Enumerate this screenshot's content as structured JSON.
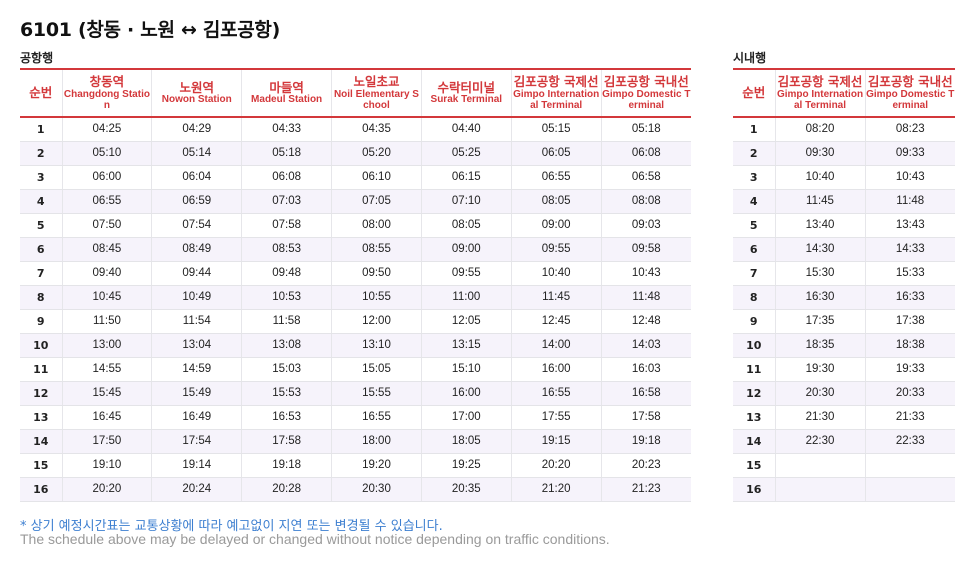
{
  "title": "6101 (창동 · 노원 ↔ 김포공항)",
  "airbound": {
    "label": "공항행",
    "num_header": "순번",
    "columns": [
      {
        "kr": "창동역",
        "en": "Changdong Station"
      },
      {
        "kr": "노원역",
        "en": "Nowon Station"
      },
      {
        "kr": "마들역",
        "en": "Madeul Station"
      },
      {
        "kr": "노일초교",
        "en": "Noil Elementary School"
      },
      {
        "kr": "수락터미널",
        "en": "Surak Terminal"
      },
      {
        "kr": "김포공항 국제선",
        "en": "Gimpo International Terminal"
      },
      {
        "kr": "김포공항 국내선",
        "en": "Gimpo Domestic Terminal"
      }
    ],
    "rows": [
      [
        "1",
        "04:25",
        "04:29",
        "04:33",
        "04:35",
        "04:40",
        "05:15",
        "05:18"
      ],
      [
        "2",
        "05:10",
        "05:14",
        "05:18",
        "05:20",
        "05:25",
        "06:05",
        "06:08"
      ],
      [
        "3",
        "06:00",
        "06:04",
        "06:08",
        "06:10",
        "06:15",
        "06:55",
        "06:58"
      ],
      [
        "4",
        "06:55",
        "06:59",
        "07:03",
        "07:05",
        "07:10",
        "08:05",
        "08:08"
      ],
      [
        "5",
        "07:50",
        "07:54",
        "07:58",
        "08:00",
        "08:05",
        "09:00",
        "09:03"
      ],
      [
        "6",
        "08:45",
        "08:49",
        "08:53",
        "08:55",
        "09:00",
        "09:55",
        "09:58"
      ],
      [
        "7",
        "09:40",
        "09:44",
        "09:48",
        "09:50",
        "09:55",
        "10:40",
        "10:43"
      ],
      [
        "8",
        "10:45",
        "10:49",
        "10:53",
        "10:55",
        "11:00",
        "11:45",
        "11:48"
      ],
      [
        "9",
        "11:50",
        "11:54",
        "11:58",
        "12:00",
        "12:05",
        "12:45",
        "12:48"
      ],
      [
        "10",
        "13:00",
        "13:04",
        "13:08",
        "13:10",
        "13:15",
        "14:00",
        "14:03"
      ],
      [
        "11",
        "14:55",
        "14:59",
        "15:03",
        "15:05",
        "15:10",
        "16:00",
        "16:03"
      ],
      [
        "12",
        "15:45",
        "15:49",
        "15:53",
        "15:55",
        "16:00",
        "16:55",
        "16:58"
      ],
      [
        "13",
        "16:45",
        "16:49",
        "16:53",
        "16:55",
        "17:00",
        "17:55",
        "17:58"
      ],
      [
        "14",
        "17:50",
        "17:54",
        "17:58",
        "18:00",
        "18:05",
        "19:15",
        "19:18"
      ],
      [
        "15",
        "19:10",
        "19:14",
        "19:18",
        "19:20",
        "19:25",
        "20:20",
        "20:23"
      ],
      [
        "16",
        "20:20",
        "20:24",
        "20:28",
        "20:30",
        "20:35",
        "21:20",
        "21:23"
      ]
    ]
  },
  "citybound": {
    "label": "시내행",
    "num_header": "순번",
    "columns": [
      {
        "kr": "김포공항 국제선",
        "en": "Gimpo International Terminal"
      },
      {
        "kr": "김포공항 국내선",
        "en": "Gimpo Domestic Terminal"
      }
    ],
    "rows": [
      [
        "1",
        "08:20",
        "08:23"
      ],
      [
        "2",
        "09:30",
        "09:33"
      ],
      [
        "3",
        "10:40",
        "10:43"
      ],
      [
        "4",
        "11:45",
        "11:48"
      ],
      [
        "5",
        "13:40",
        "13:43"
      ],
      [
        "6",
        "14:30",
        "14:33"
      ],
      [
        "7",
        "15:30",
        "15:33"
      ],
      [
        "8",
        "16:30",
        "16:33"
      ],
      [
        "9",
        "17:35",
        "17:38"
      ],
      [
        "10",
        "18:35",
        "18:38"
      ],
      [
        "11",
        "19:30",
        "19:33"
      ],
      [
        "12",
        "20:30",
        "20:33"
      ],
      [
        "13",
        "21:30",
        "21:33"
      ],
      [
        "14",
        "22:30",
        "22:33"
      ],
      [
        "15",
        "",
        ""
      ],
      [
        "16",
        "",
        ""
      ]
    ]
  },
  "notes": {
    "kr": "* 상기 예정시간표는 교통상황에 따라 예고없이 지연 또는 변경될 수 있습니다.",
    "en": "The schedule above may be delayed or changed without notice depending on traffic conditions."
  },
  "colors": {
    "accent": "#d3383b",
    "row_stripe": "#f6f3fb",
    "note_kr": "#3d7fd0",
    "note_en": "#9a9a9a"
  }
}
